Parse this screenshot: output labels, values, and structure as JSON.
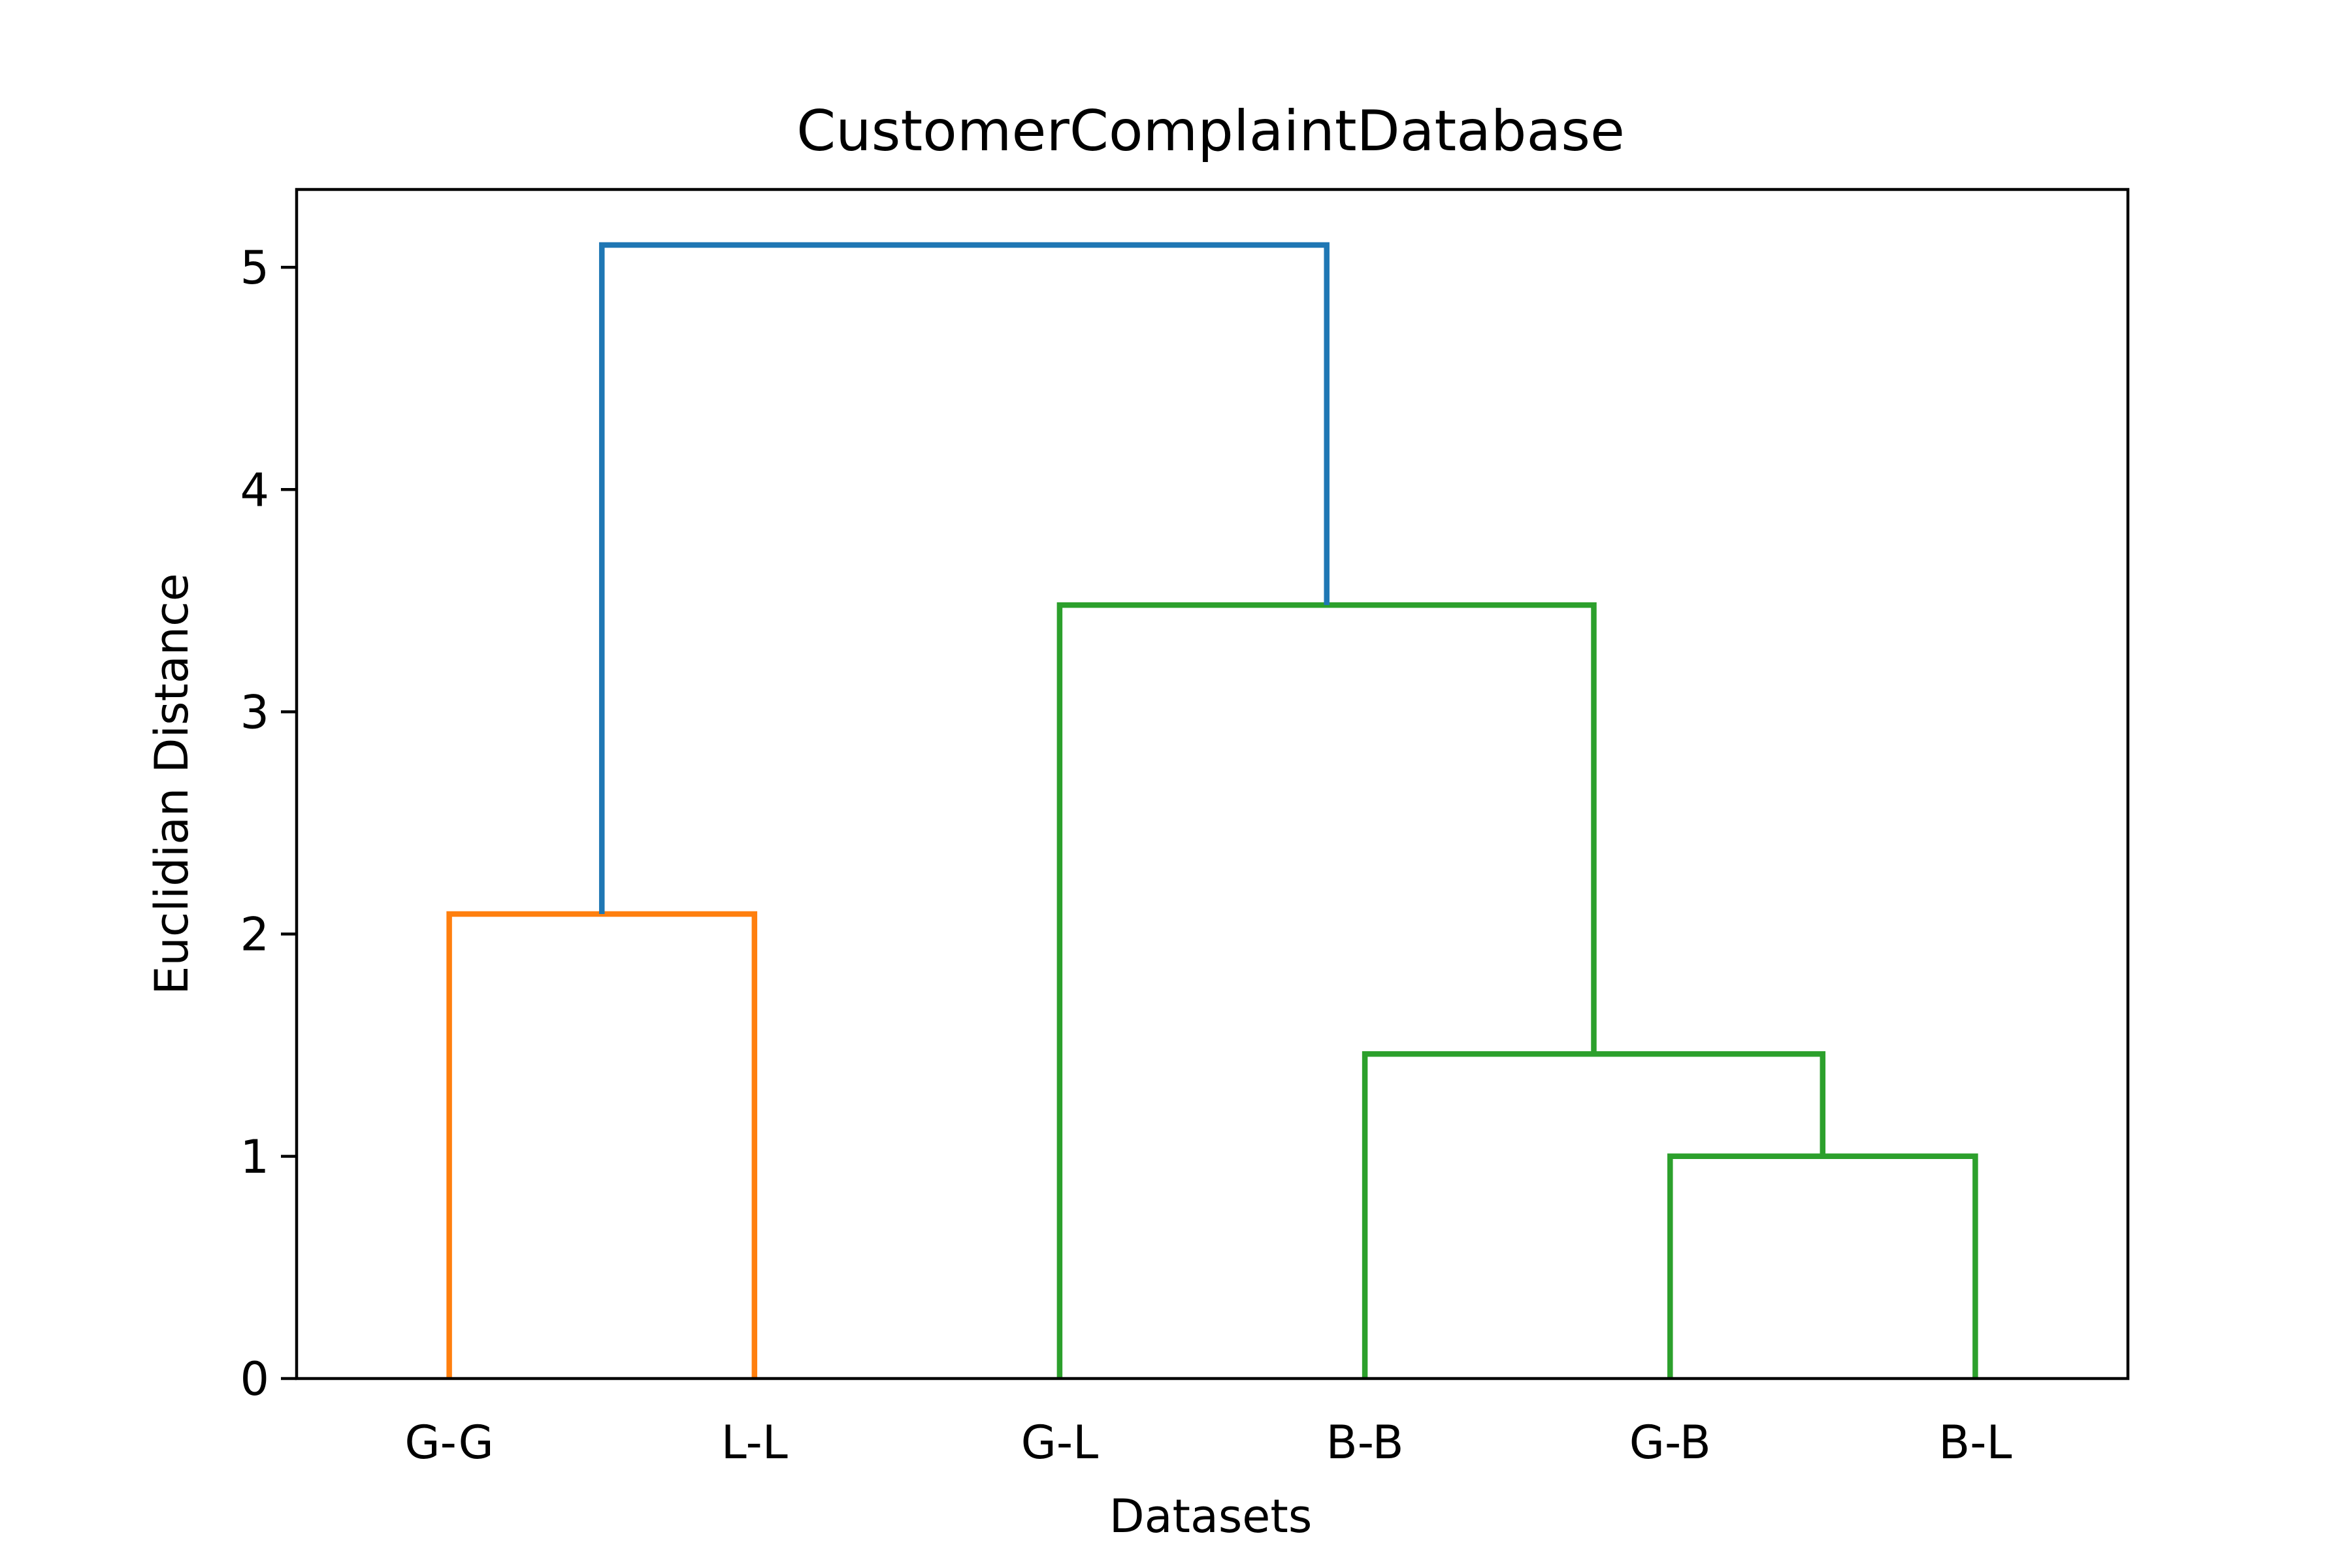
{
  "chart_data": {
    "type": "dendrogram",
    "title": "CustomerComplaintDatabase",
    "xlabel": "Datasets",
    "ylabel": "Euclidian Distance",
    "leaves": [
      "G-G",
      "L-L",
      "G-L",
      "B-B",
      "G-B",
      "B-L"
    ],
    "ylim": [
      0,
      5.35
    ],
    "yticks": [
      0,
      1,
      2,
      3,
      4,
      5
    ],
    "grid": false,
    "links": [
      {
        "left": "G-G",
        "right": "L-L",
        "height": 2.09,
        "color": "#ff7f0e"
      },
      {
        "left": "G-B",
        "right": "B-L",
        "height": 1.0,
        "color": "#2ca02c"
      },
      {
        "left": "B-B",
        "right": "G-B + B-L",
        "height": 1.46,
        "color": "#2ca02c"
      },
      {
        "left": "G-L",
        "right": "B-B + G-B + B-L",
        "height": 3.48,
        "color": "#2ca02c"
      },
      {
        "left": "G-G + L-L",
        "right": "G-L + B-B + G-B + B-L",
        "height": 5.1,
        "color": "#1f77b4"
      }
    ]
  }
}
